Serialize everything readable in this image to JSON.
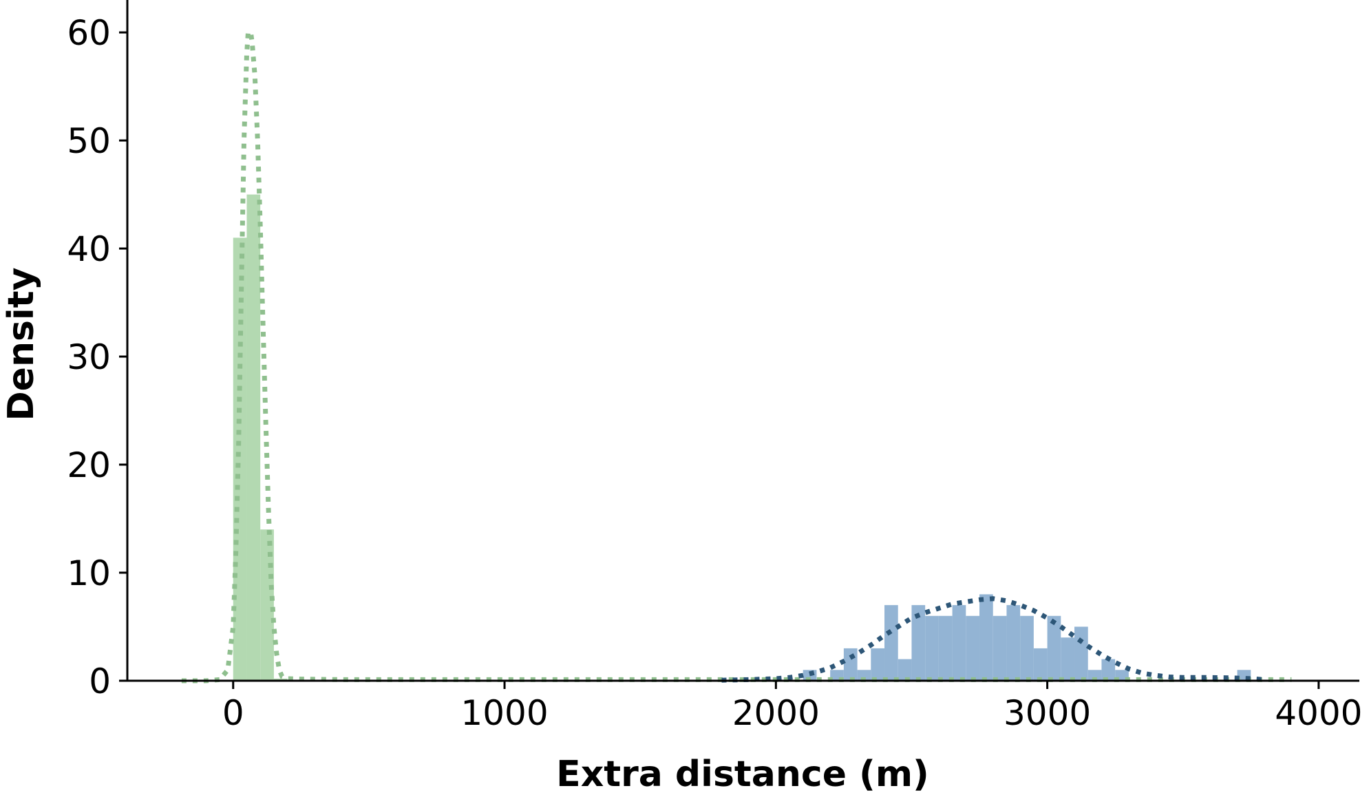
{
  "chart_data": {
    "type": "histogram",
    "title": "",
    "xlabel": "Extra distance (m)",
    "ylabel": "Density",
    "xlim": [
      -390,
      4150
    ],
    "ylim": [
      0,
      63
    ],
    "xticks": [
      0,
      1000,
      2000,
      3000,
      4000
    ],
    "yticks": [
      0,
      10,
      20,
      30,
      40,
      50,
      60
    ],
    "grid": false,
    "legend": "none",
    "spines": [
      "left",
      "bottom"
    ],
    "series": [
      {
        "color": "#b3d9b1",
        "kde_color": "#8fbf8e",
        "bin_edges": [
          0,
          50,
          100,
          150,
          200
        ],
        "values": [
          41,
          45,
          14,
          0.2
        ],
        "kde": {
          "x": [
            -190,
            -100,
            -50,
            -20,
            0,
            10,
            20,
            30,
            40,
            50,
            55,
            60,
            65,
            70,
            80,
            90,
            100,
            110,
            120,
            130,
            140,
            150,
            160,
            170,
            180,
            200,
            250,
            400,
            1000,
            2000,
            3000,
            3500,
            3900
          ],
          "y": [
            0,
            0,
            0.1,
            1,
            5,
            12,
            22,
            36,
            50,
            58,
            60,
            60,
            60,
            59,
            56,
            50,
            42,
            33,
            24,
            16,
            9,
            5,
            2.5,
            1,
            0.4,
            0.2,
            0.15,
            0.1,
            0.1,
            0.1,
            0.1,
            0.1,
            0.1
          ]
        }
      },
      {
        "color": "#93b4d4",
        "kde_color": "#2d5677",
        "bin_edges": [
          2100,
          2150,
          2200,
          2250,
          2300,
          2350,
          2400,
          2450,
          2500,
          2550,
          2600,
          2650,
          2700,
          2750,
          2800,
          2850,
          2900,
          2950,
          3000,
          3050,
          3100,
          3150,
          3200,
          3250,
          3300,
          3350,
          3400,
          3450,
          3500,
          3550,
          3600,
          3650,
          3700,
          3750
        ],
        "values": [
          1,
          0,
          1,
          3,
          1,
          3,
          7,
          2,
          7,
          6,
          6,
          7,
          6,
          8,
          6,
          7,
          6,
          3,
          6,
          4,
          5,
          1,
          2,
          1,
          0,
          0,
          0,
          0,
          0,
          0,
          0,
          0,
          1
        ],
        "kde": {
          "x": [
            1800,
            1900,
            2000,
            2050,
            2100,
            2150,
            2200,
            2250,
            2300,
            2350,
            2400,
            2450,
            2500,
            2550,
            2600,
            2650,
            2700,
            2750,
            2800,
            2850,
            2900,
            2950,
            3000,
            3050,
            3100,
            3150,
            3200,
            3250,
            3300,
            3350,
            3400,
            3450,
            3500,
            3550,
            3600,
            3650,
            3700,
            3750,
            3800
          ],
          "y": [
            0.05,
            0.1,
            0.2,
            0.3,
            0.5,
            0.8,
            1.2,
            1.8,
            2.5,
            3.3,
            4.2,
            5.0,
            5.8,
            6.3,
            6.7,
            7.1,
            7.3,
            7.5,
            7.6,
            7.4,
            7.0,
            6.5,
            5.8,
            5.0,
            4.1,
            3.2,
            2.4,
            1.7,
            1.1,
            0.7,
            0.5,
            0.35,
            0.3,
            0.3,
            0.3,
            0.28,
            0.25,
            0.2,
            0.1
          ]
        }
      }
    ]
  }
}
